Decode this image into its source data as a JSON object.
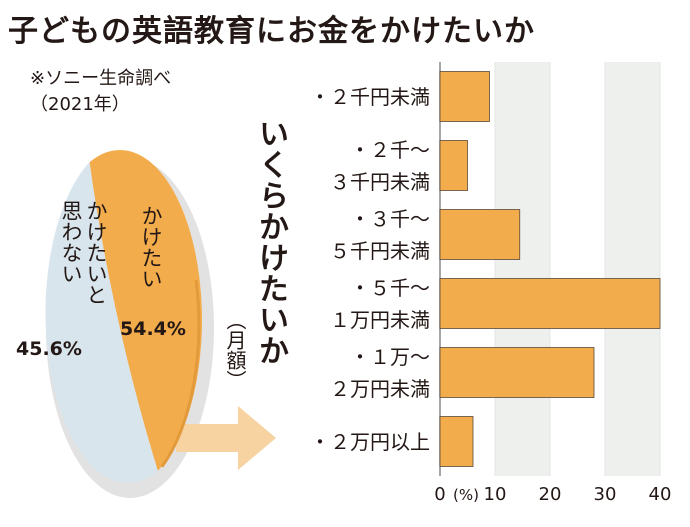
{
  "title": "子どもの英語教育にお金をかけたいか",
  "source_lines": [
    "※ソニー生命調べ",
    "（2021年）"
  ],
  "colors": {
    "orange": "#F3AC4C",
    "blue_gray": "#D9E5EC",
    "grid_band": "#EEF0EE",
    "text": "#231815"
  },
  "chart_data": [
    {
      "type": "pie",
      "slices": [
        {
          "label": "かけたい",
          "value": 54.4,
          "value_label": "54.4%",
          "color": "#F3AC4C"
        },
        {
          "label": "かけたいと思わない",
          "label_lines": [
            "かけたいと",
            "思わない"
          ],
          "value": 45.6,
          "value_label": "45.6%",
          "color": "#D9E5EC"
        }
      ]
    },
    {
      "type": "bar",
      "orientation": "horizontal",
      "ylabel": "いくらかけたいか",
      "unit_label": "（月額）",
      "xlabel": "(%)",
      "categories": [
        [
          "・２千円未満"
        ],
        [
          "・２千～",
          "３千円未満"
        ],
        [
          "・３千～",
          "５千円未満"
        ],
        [
          "・５千～",
          "１万円未満"
        ],
        [
          "・１万～",
          "２万円未満"
        ],
        [
          "・２万円以上"
        ]
      ],
      "values": [
        9,
        5,
        14.5,
        40,
        28,
        6
      ],
      "xlim": [
        0,
        40
      ],
      "xticks": [
        0,
        10,
        20,
        30,
        40
      ],
      "tick_labels": [
        "0",
        "10",
        "20",
        "30",
        "40"
      ],
      "color": "#F3AC4C",
      "grid": true
    }
  ]
}
